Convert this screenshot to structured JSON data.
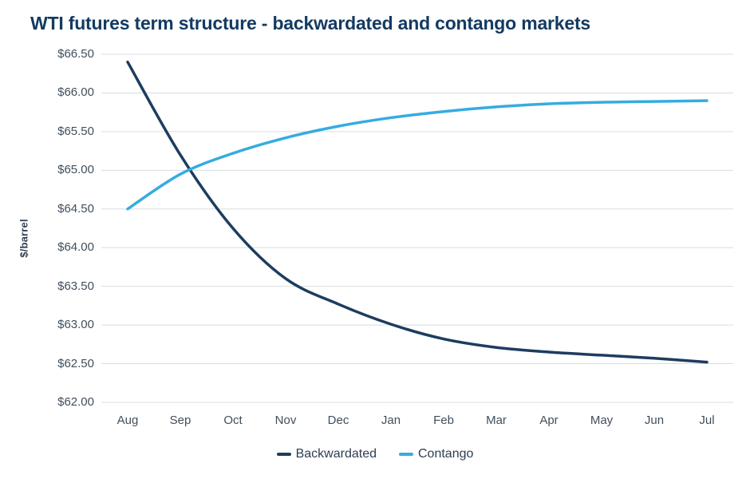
{
  "chart_data": {
    "type": "line",
    "title": "WTI futures term structure - backwardated and contango markets",
    "ylabel": "$/barrel",
    "xlabel": "",
    "categories": [
      "Aug",
      "Sep",
      "Oct",
      "Nov",
      "Dec",
      "Jan",
      "Feb",
      "Mar",
      "Apr",
      "May",
      "Jun",
      "Jul"
    ],
    "ytick_labels": [
      "$66.50",
      "$66.00",
      "$65.50",
      "$65.00",
      "$64.50",
      "$64.00",
      "$63.50",
      "$63.00",
      "$62.50",
      "$62.00"
    ],
    "ylim": [
      62.0,
      66.5
    ],
    "grid": "horizontal-only",
    "legend_position": "bottom-center",
    "series": [
      {
        "name": "Backwardated",
        "color": "#1d3d5f",
        "values": [
          66.4,
          65.2,
          64.25,
          63.6,
          63.27,
          63.01,
          62.82,
          62.71,
          62.65,
          62.61,
          62.57,
          62.52
        ]
      },
      {
        "name": "Contango",
        "color": "#35ace0",
        "values": [
          64.5,
          64.95,
          65.22,
          65.42,
          65.57,
          65.68,
          65.76,
          65.82,
          65.86,
          65.88,
          65.89,
          65.9
        ]
      }
    ],
    "colors": {
      "title": "#133a63",
      "tick_labels": "#414e5c",
      "gridlines": "#d8dde3",
      "background": "#ffffff"
    }
  }
}
